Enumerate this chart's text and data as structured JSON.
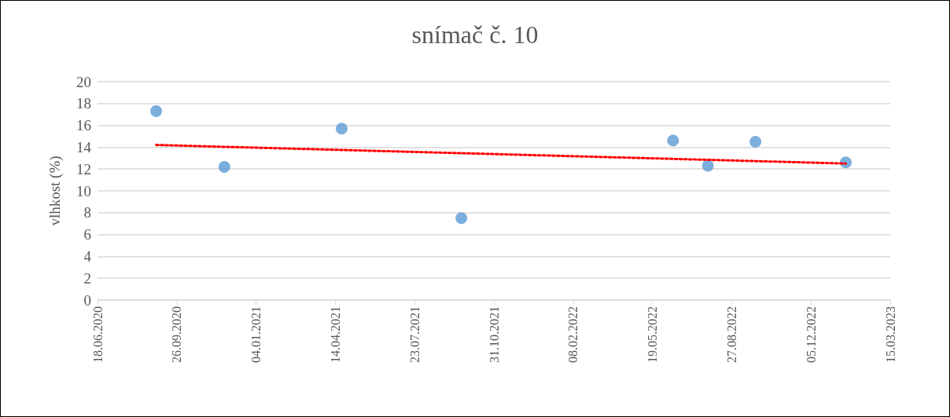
{
  "chart_data": {
    "type": "scatter",
    "title": "snímač č. 10",
    "ylabel": "vlhkost (%)",
    "x": [
      "2020-08-31",
      "2020-11-25",
      "2021-04-22",
      "2021-09-20",
      "2022-06-14",
      "2022-07-28",
      "2022-09-26",
      "2023-01-18"
    ],
    "series": [
      {
        "color": "#5b9bd5",
        "marker": "circle",
        "values": [
          17.3,
          12.2,
          15.7,
          7.5,
          14.6,
          12.3,
          14.5,
          12.6
        ]
      },
      {
        "type": "line",
        "color": "#ff0000",
        "marker": "none",
        "line_style": "dotted",
        "x": [
          "2020-08-31",
          "2023-01-18"
        ],
        "values": [
          14.2,
          12.5
        ]
      }
    ],
    "xlim": [
      "2020-06-18",
      "2023-03-15"
    ],
    "xticks": [
      {
        "value": "2020-06-18",
        "label": "18.06.2020"
      },
      {
        "value": "2020-09-26",
        "label": "26.09.2020"
      },
      {
        "value": "2021-01-04",
        "label": "04.01.2021"
      },
      {
        "value": "2021-04-14",
        "label": "14.04.2021"
      },
      {
        "value": "2021-07-23",
        "label": "23.07.2021"
      },
      {
        "value": "2021-10-31",
        "label": "31.10.2021"
      },
      {
        "value": "2022-02-08",
        "label": "08.02.2022"
      },
      {
        "value": "2022-05-19",
        "label": "19.05.2022"
      },
      {
        "value": "2022-08-27",
        "label": "27.08.2022"
      },
      {
        "value": "2022-12-05",
        "label": "05.12.2022"
      },
      {
        "value": "2023-03-15",
        "label": "15.03.2023"
      }
    ],
    "ylim": [
      0,
      20
    ],
    "yticks": [
      0,
      2,
      4,
      6,
      8,
      10,
      12,
      14,
      16,
      18,
      20
    ],
    "grid": "y"
  }
}
